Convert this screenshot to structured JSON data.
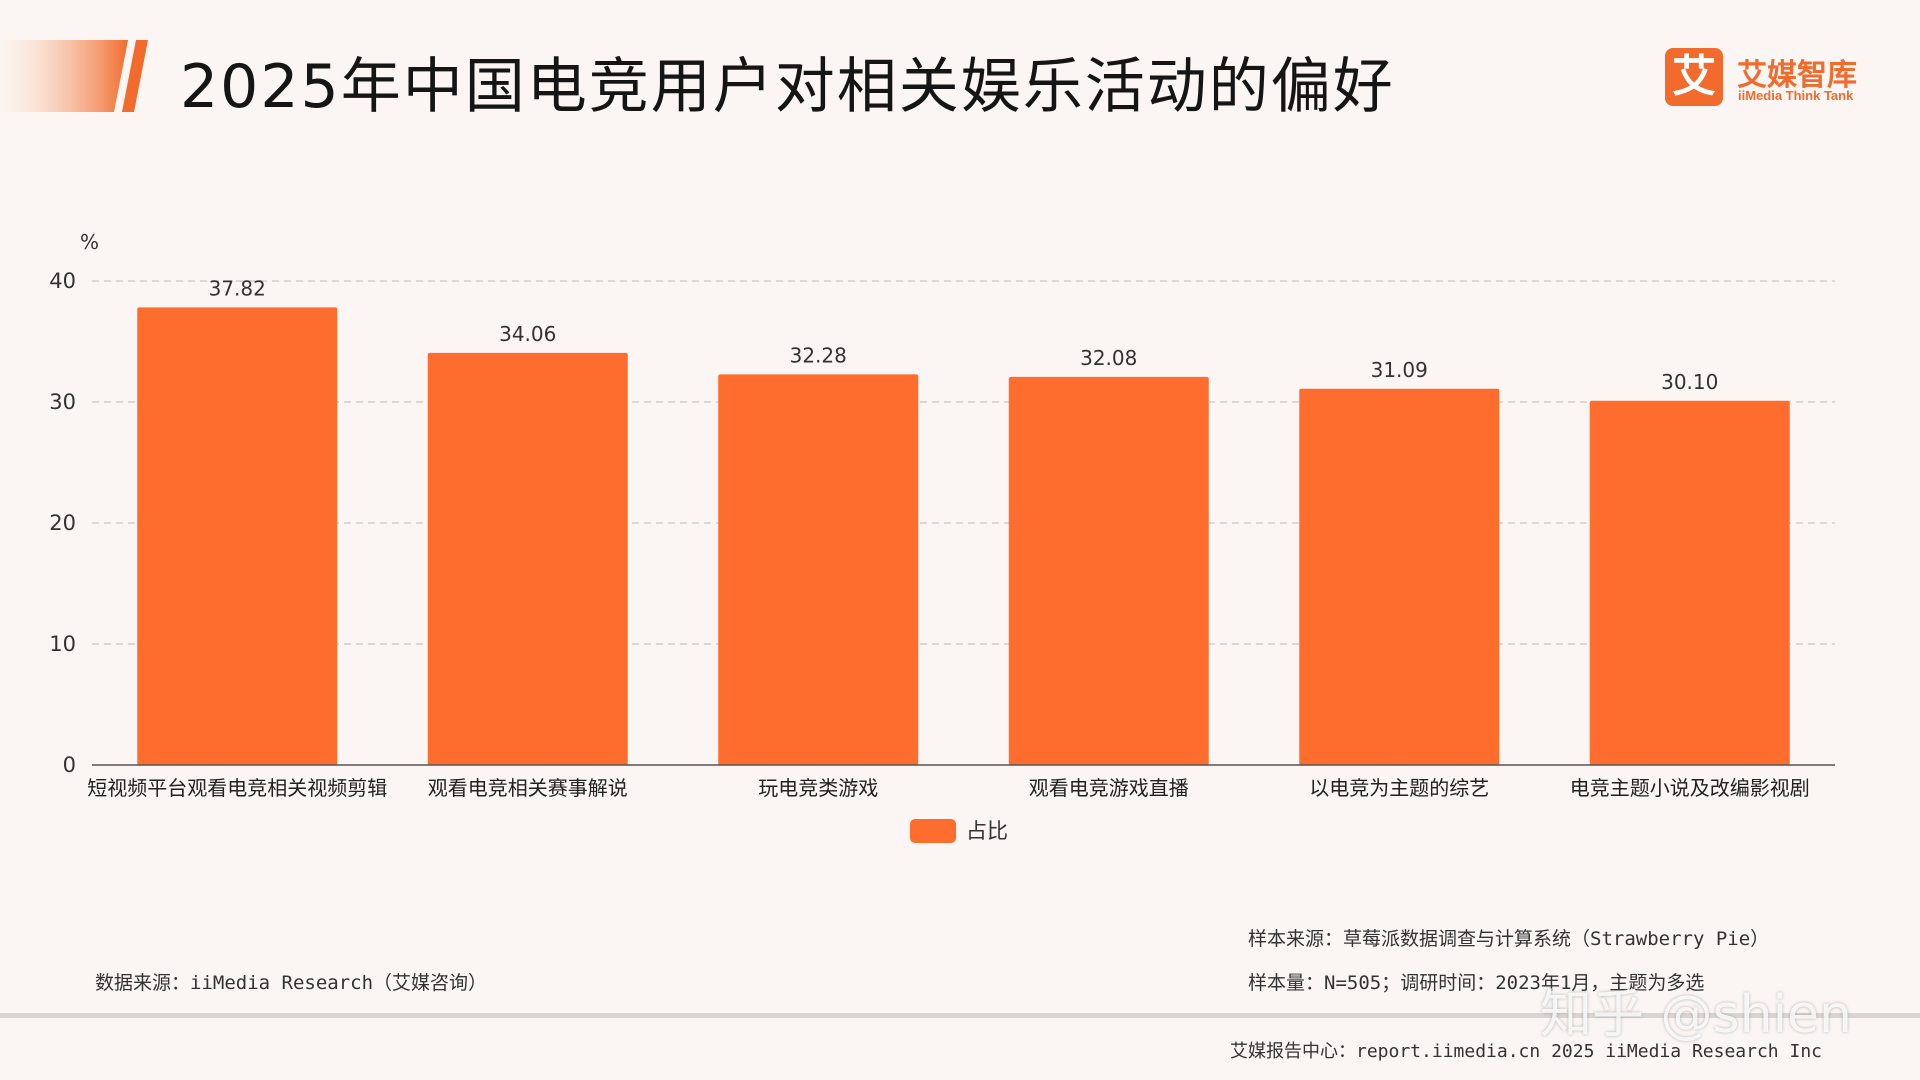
{
  "page": {
    "title": "2025年中国电竞用户对相关娱乐活动的偏好"
  },
  "logo": {
    "glyph": "艾",
    "name": "艾媒智库",
    "subtitle": "iiMedia Think Tank"
  },
  "chart_data": {
    "type": "bar",
    "y_unit": "%",
    "ylim": [
      0,
      40
    ],
    "y_ticks": [
      "0",
      "10",
      "20",
      "30",
      "40"
    ],
    "grid": true,
    "categories": [
      "短视频平台观看电竞相关视频剪辑",
      "观看电竞相关赛事解说",
      "玩电竞类游戏",
      "观看电竞游戏直播",
      "以电竞为主题的综艺",
      "电竞主题小说及改编影视剧"
    ],
    "series": [
      {
        "name": "占比",
        "values": [
          37.82,
          34.06,
          32.28,
          32.08,
          31.09,
          30.1
        ],
        "labels": [
          "37.82",
          "34.06",
          "32.28",
          "32.08",
          "31.09",
          "30.10"
        ]
      }
    ],
    "legend_position": "bottom-center",
    "bar_color": "#ff6d2e"
  },
  "notes": {
    "data_source": "数据来源：iiMedia Research（艾媒咨询）",
    "sample_source": "样本来源：草莓派数据调查与计算系统（Strawberry Pie）",
    "sample_size": "样本量：N=505；调研时间：2023年1月，主题为多选",
    "footer": "艾媒报告中心：report.iimedia.cn  2025 iiMedia Research Inc"
  },
  "watermark": "知乎 @shien",
  "colors": {
    "accent": "#f26b2c",
    "bar": "#ff6d2e",
    "background": "#fbf6f3"
  }
}
